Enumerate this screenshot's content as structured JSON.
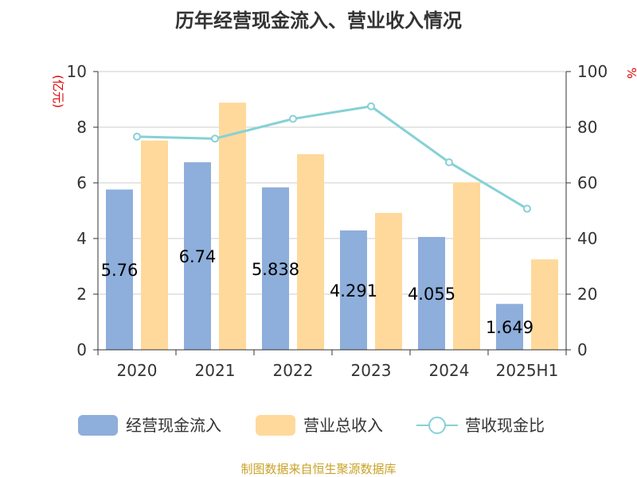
{
  "chart_data": {
    "type": "bar",
    "title": "历年经营现金流入、营业收入情况",
    "categories": [
      "2020",
      "2021",
      "2022",
      "2023",
      "2024",
      "2025H1"
    ],
    "left_axis": {
      "unit": "(亿元)",
      "ylim": [
        0,
        10
      ],
      "ticks": [
        "0",
        "2",
        "4",
        "6",
        "8",
        "10"
      ]
    },
    "right_axis": {
      "unit": "%",
      "ylim": [
        0,
        100
      ],
      "ticks": [
        "0",
        "20",
        "40",
        "60",
        "80",
        "100"
      ]
    },
    "grid": true,
    "legend_position": "bottom",
    "series": [
      {
        "name": "经营现金流入",
        "type": "bar",
        "axis": "left",
        "color": "#8eaedb",
        "values": [
          5.76,
          6.74,
          5.838,
          4.291,
          4.055,
          1.649
        ],
        "labels": [
          "5.76",
          "6.74",
          "5.838",
          "4.291",
          "4.055",
          "1.649"
        ]
      },
      {
        "name": "营业总收入",
        "type": "bar",
        "axis": "left",
        "color": "#fed99b",
        "values": [
          7.52,
          8.88,
          7.03,
          4.92,
          6.02,
          3.25
        ]
      },
      {
        "name": "营收现金比",
        "type": "line",
        "axis": "right",
        "color": "#86d1d6",
        "values": [
          76.6,
          75.9,
          83.0,
          87.5,
          67.4,
          50.7
        ]
      }
    ],
    "source": "制图数据来自恒生聚源数据库"
  }
}
